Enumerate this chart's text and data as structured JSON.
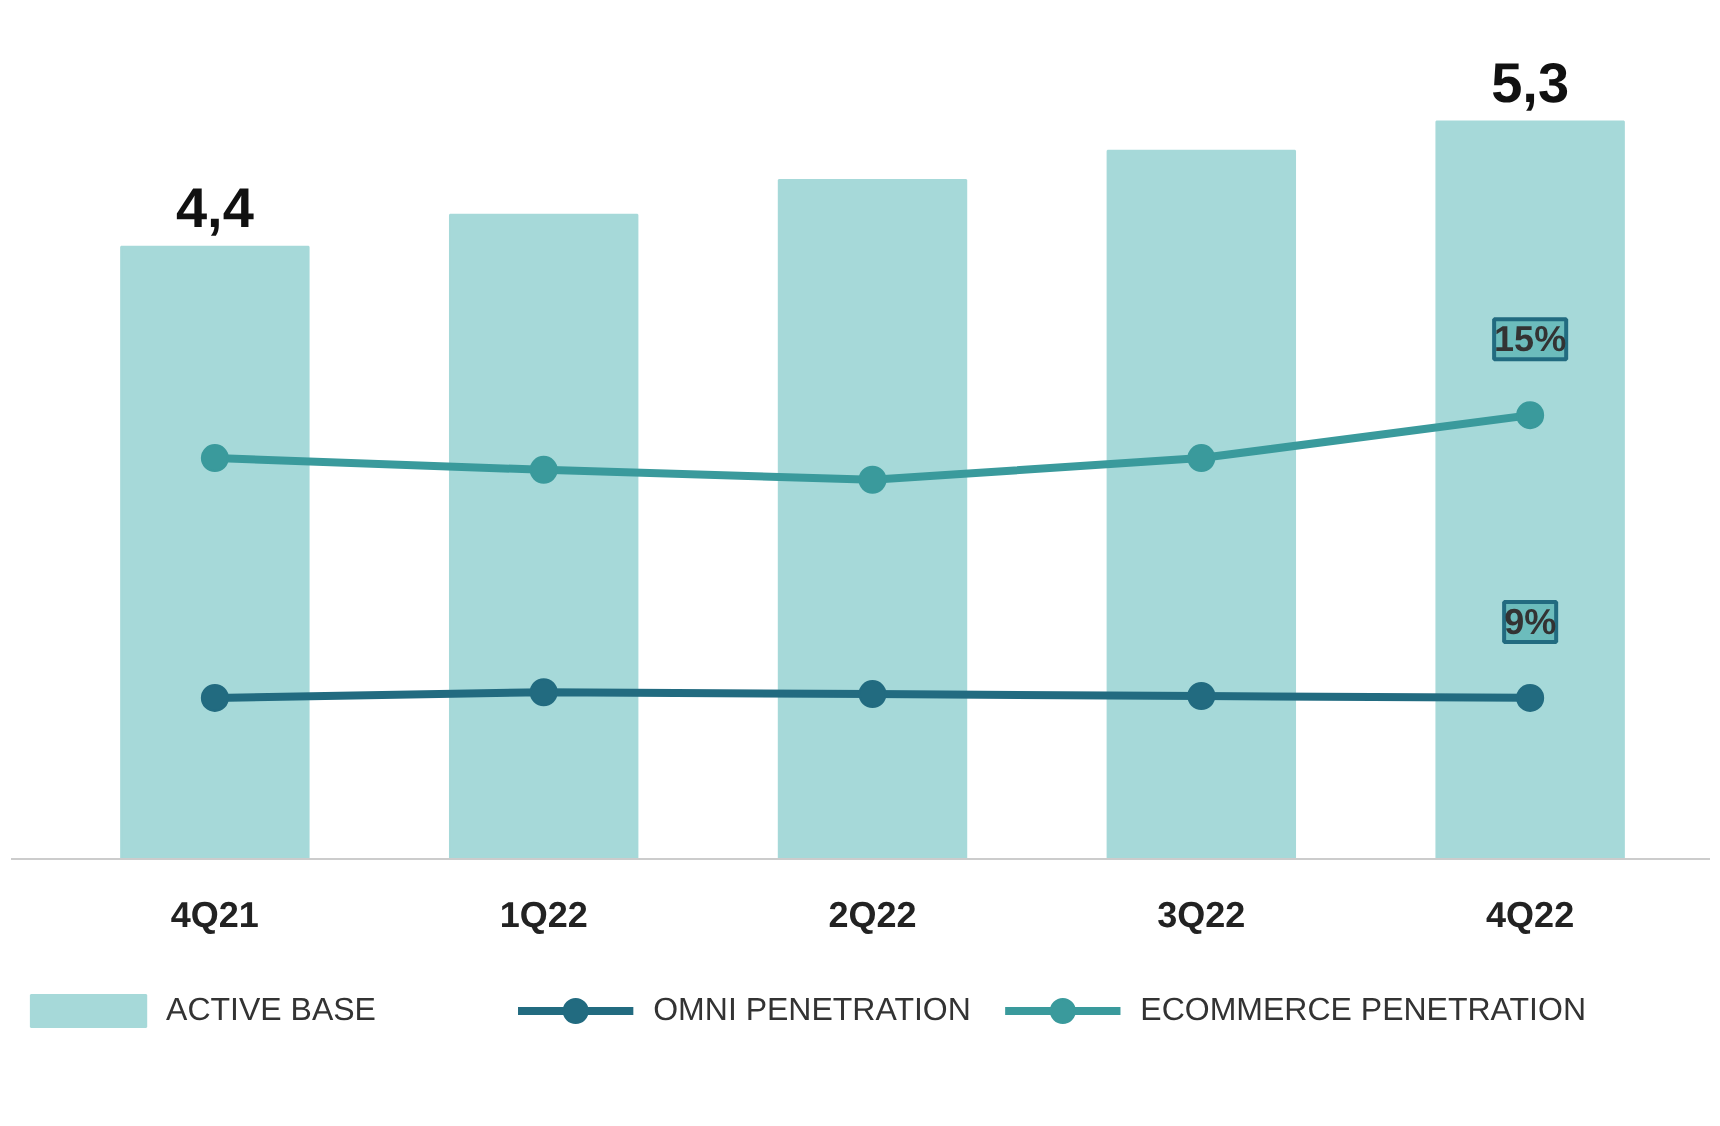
{
  "chart_data": {
    "type": "bar",
    "categories": [
      "4Q21",
      "1Q22",
      "2Q22",
      "3Q22",
      "4Q22"
    ],
    "series": [
      {
        "name": "ACTIVE BASE",
        "color": "#a6d9d9",
        "values": [
          4.4,
          4.63,
          4.88,
          5.09,
          5.3
        ],
        "value_labels": [
          "4,4",
          null,
          null,
          null,
          "5,3"
        ]
      },
      {
        "name": "OMNI PENETRATION",
        "type": "line",
        "axis": "y2",
        "color": "#226b80",
        "values": [
          9.0,
          9.12,
          9.08,
          9.04,
          9.0
        ],
        "value_labels": [
          null,
          null,
          null,
          null,
          "9%"
        ]
      },
      {
        "name": "ECOMMERCE PENETRATION",
        "type": "line",
        "axis": "y2",
        "color": "#3a9a9c",
        "values": [
          14.09,
          13.84,
          13.63,
          14.09,
          15.0
        ],
        "value_labels": [
          null,
          null,
          null,
          null,
          "15%"
        ]
      }
    ],
    "tick_labels": "x",
    "legend": "bottom",
    "marker": "circle",
    "line_style": "solid"
  }
}
